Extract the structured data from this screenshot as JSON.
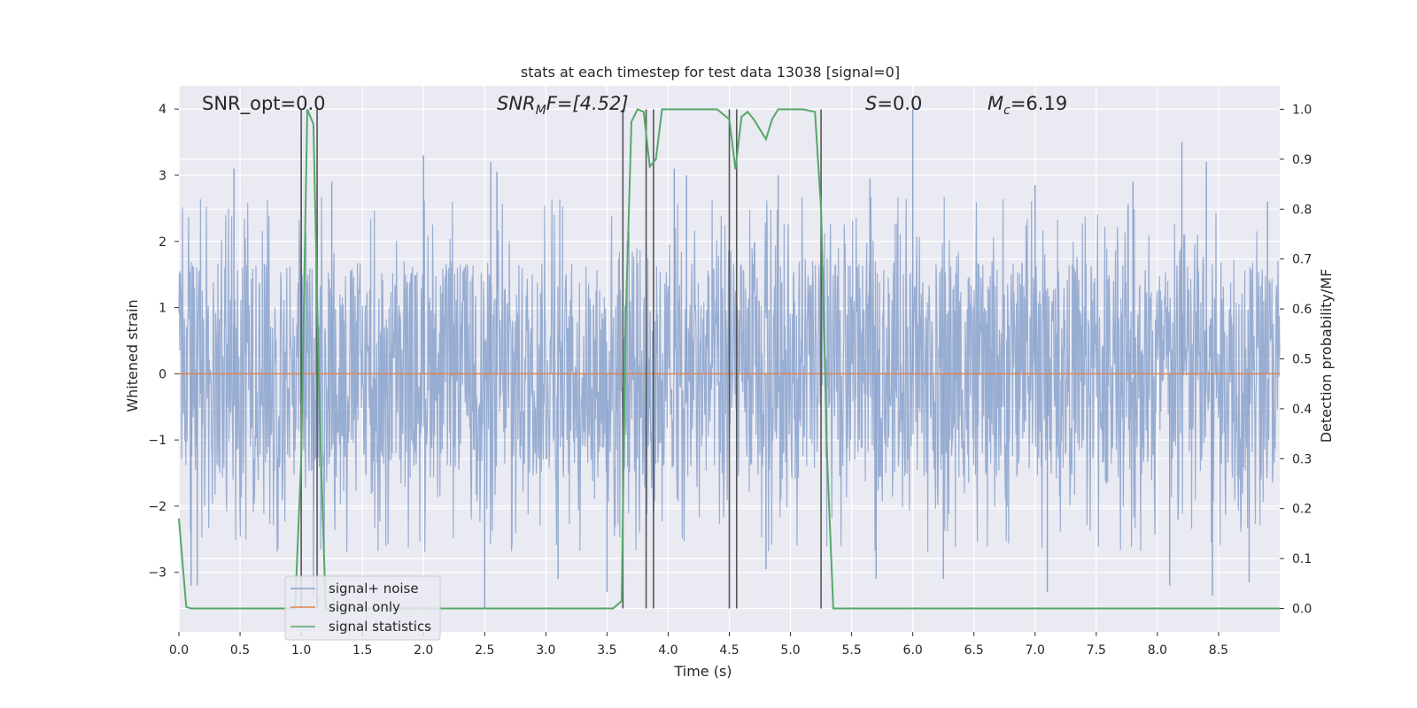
{
  "chart_data": {
    "type": "line",
    "title": "stats at each timestep for test data 13038 [signal=0]",
    "xlabel": "Time (s)",
    "ylabel_left": "Whitened strain",
    "ylabel_right": "Detection probability/MF",
    "xlim": [
      0.0,
      9.0
    ],
    "ylim_left": [
      -3.9,
      4.35
    ],
    "ylim_right": [
      -0.047,
      1.047
    ],
    "xticks": [
      "0.0",
      "0.5",
      "1.0",
      "1.5",
      "2.0",
      "2.5",
      "3.0",
      "3.5",
      "4.0",
      "4.5",
      "5.0",
      "5.5",
      "6.0",
      "6.5",
      "7.0",
      "7.5",
      "8.0",
      "8.5"
    ],
    "yticks_left": [
      "4",
      "3",
      "2",
      "1",
      "0",
      "−1",
      "−2",
      "−3"
    ],
    "yticks_right": [
      "1.0",
      "0.9",
      "0.8",
      "0.7",
      "0.6",
      "0.5",
      "0.4",
      "0.3",
      "0.2",
      "0.1",
      "0.0"
    ],
    "grid": true,
    "legend_position": "lower-left",
    "annotations": {
      "snr_opt": "SNR_opt=0.0",
      "snr_mf_base": "SNR",
      "snr_mf_sub": "M",
      "snr_mf_rest": "F=[4.52]",
      "s_label": "S",
      "s_value": "=0.0",
      "mc_base": "M",
      "mc_sub": "c",
      "mc_value": "=6.19"
    },
    "series": [
      {
        "name": "signal+ noise",
        "color": "#8aa2cc",
        "style": "dense noise trace",
        "envelope_typical": [
          -1.6,
          1.7
        ],
        "spikes": [
          [
            0.45,
            3.1
          ],
          [
            1.0,
            3.6
          ],
          [
            1.12,
            2.2
          ],
          [
            1.25,
            2.9
          ],
          [
            2.0,
            3.3
          ],
          [
            2.55,
            3.2
          ],
          [
            2.6,
            3.05
          ],
          [
            4.05,
            3.1
          ],
          [
            4.15,
            3.0
          ],
          [
            4.9,
            3.0
          ],
          [
            5.65,
            2.95
          ],
          [
            6.0,
            4.0
          ],
          [
            7.0,
            2.85
          ],
          [
            7.8,
            2.9
          ],
          [
            8.2,
            3.5
          ],
          [
            8.4,
            3.2
          ],
          [
            8.9,
            2.6
          ],
          [
            0.1,
            -3.2
          ],
          [
            0.15,
            -3.2
          ],
          [
            1.1,
            -3.35
          ],
          [
            2.5,
            -3.55
          ],
          [
            3.1,
            -3.1
          ],
          [
            3.5,
            -3.3
          ],
          [
            4.8,
            -2.95
          ],
          [
            5.7,
            -3.1
          ],
          [
            6.25,
            -3.1
          ],
          [
            7.1,
            -3.3
          ],
          [
            8.1,
            -3.2
          ],
          [
            8.45,
            -3.35
          ],
          [
            8.75,
            -3.15
          ]
        ]
      },
      {
        "name": "signal only",
        "color": "#dd8452",
        "values_note": "flat at 0",
        "x": [
          0.0,
          9.0
        ],
        "y": [
          0.0,
          0.0
        ]
      },
      {
        "name": "signal statistics",
        "color": "#55a868",
        "x": [
          0.0,
          0.06,
          0.1,
          0.2,
          0.9,
          0.95,
          1.0,
          1.05,
          1.1,
          1.15,
          1.2,
          1.25,
          3.55,
          3.62,
          3.65,
          3.7,
          3.75,
          3.8,
          3.85,
          3.9,
          3.95,
          4.0,
          4.2,
          4.4,
          4.5,
          4.55,
          4.6,
          4.65,
          4.7,
          4.8,
          4.85,
          4.9,
          5.0,
          5.1,
          5.2,
          5.25,
          5.3,
          5.35,
          5.4,
          5.5,
          9.0
        ],
        "y": [
          0.18,
          0.003,
          0.0,
          0.0,
          0.0,
          0.0,
          0.3,
          1.0,
          0.97,
          0.4,
          0.0,
          0.0,
          0.0,
          0.015,
          0.55,
          0.975,
          1.0,
          0.995,
          0.885,
          0.9,
          1.0,
          1.0,
          1.0,
          1.0,
          0.98,
          0.88,
          0.985,
          0.995,
          0.98,
          0.94,
          0.98,
          1.0,
          1.0,
          1.0,
          0.995,
          0.8,
          0.3,
          0.0,
          0.0,
          0.0,
          0.0
        ]
      }
    ],
    "detection_lines_x": [
      1.0,
      1.13,
      3.63,
      3.82,
      3.88,
      4.5,
      4.56,
      5.25
    ]
  },
  "legend": {
    "noise": "signal+ noise",
    "signal": "signal only",
    "stats": "signal statistics"
  }
}
